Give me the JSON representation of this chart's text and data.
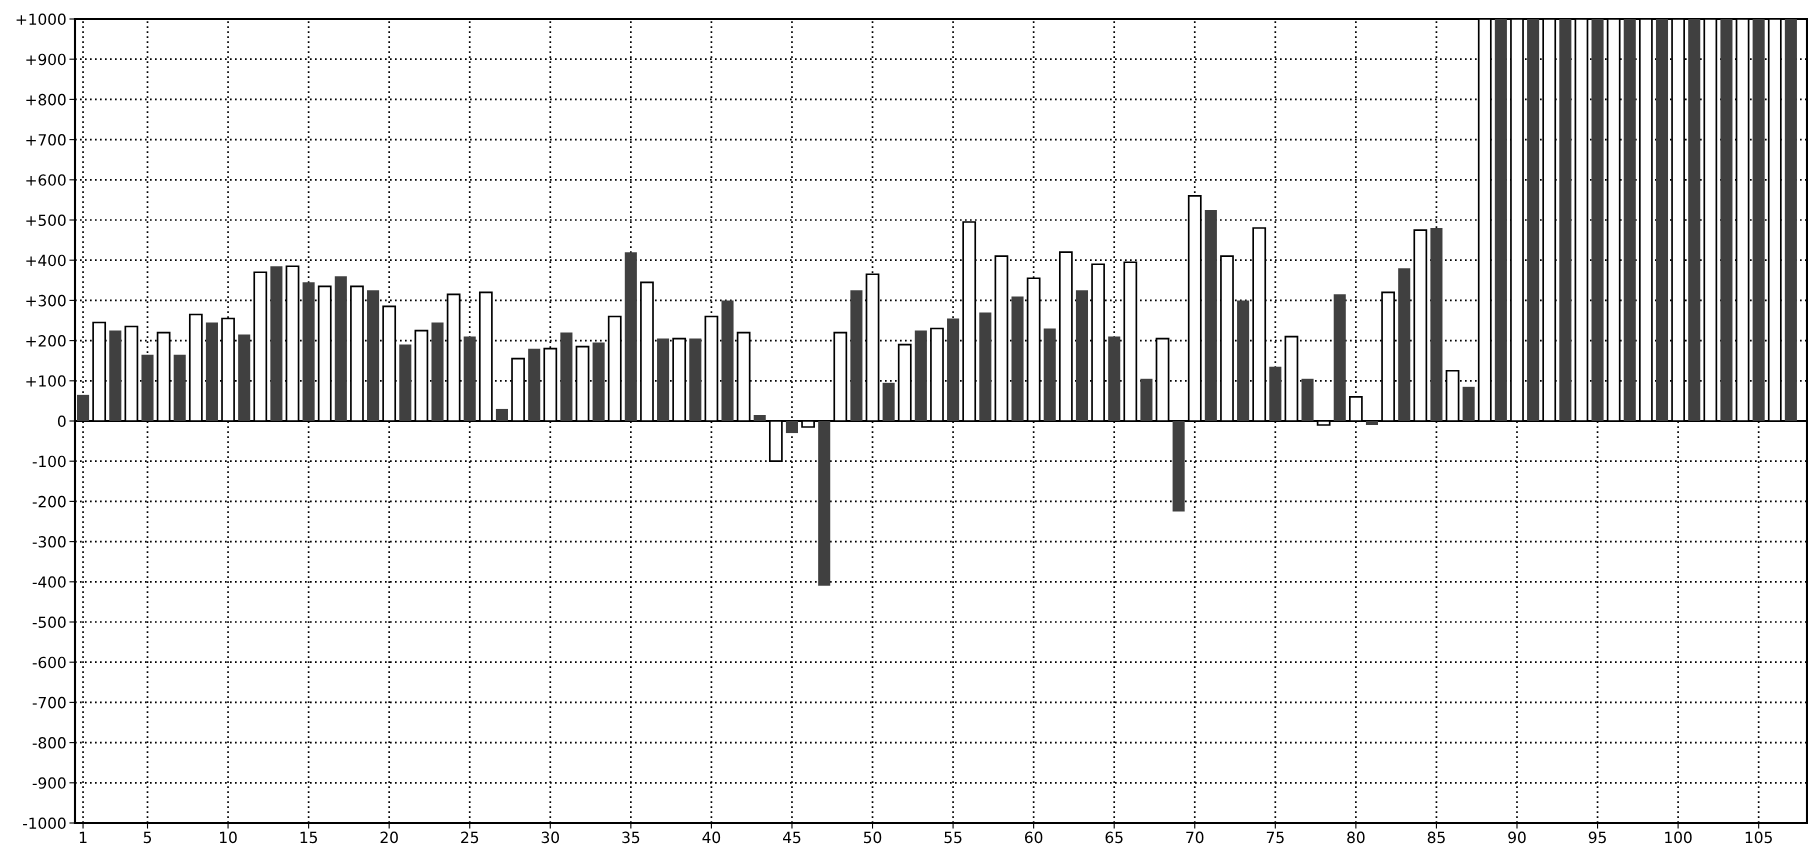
{
  "chart_data": {
    "type": "bar",
    "series": [
      {
        "color": "#404040",
        "x": [
          1,
          3,
          5,
          7,
          9,
          11,
          13,
          15,
          17,
          19,
          21,
          23,
          25,
          27,
          29,
          31,
          33,
          35,
          37,
          39,
          41,
          43,
          45,
          47,
          49,
          51,
          53,
          55,
          57,
          59,
          61,
          63,
          65,
          67,
          69,
          71,
          73,
          75,
          77,
          79,
          81,
          83,
          85,
          87,
          89,
          91,
          93,
          95,
          97,
          99,
          101,
          103,
          105,
          107
        ],
        "values": [
          65,
          225,
          165,
          165,
          245,
          215,
          385,
          345,
          360,
          325,
          190,
          245,
          210,
          30,
          180,
          220,
          195,
          420,
          205,
          205,
          300,
          15,
          -30,
          -410,
          325,
          95,
          225,
          255,
          270,
          310,
          230,
          325,
          210,
          105,
          -225,
          525,
          300,
          135,
          105,
          315,
          -10,
          380,
          480,
          85,
          1000,
          1000,
          1000,
          1000,
          1000,
          1000,
          1000,
          1000,
          1000,
          1000
        ]
      },
      {
        "color": "#ffffff",
        "x": [
          2,
          4,
          6,
          8,
          10,
          12,
          14,
          16,
          18,
          20,
          22,
          24,
          26,
          28,
          30,
          32,
          34,
          36,
          38,
          40,
          42,
          44,
          46,
          48,
          50,
          52,
          54,
          56,
          58,
          60,
          62,
          64,
          66,
          68,
          70,
          72,
          74,
          76,
          78,
          80,
          82,
          84,
          86,
          88,
          90,
          92,
          94,
          96,
          98,
          100,
          102,
          104,
          106
        ],
        "values": [
          245,
          235,
          220,
          265,
          255,
          370,
          385,
          335,
          335,
          285,
          225,
          315,
          320,
          155,
          180,
          185,
          260,
          345,
          205,
          260,
          220,
          -100,
          -15,
          220,
          365,
          190,
          230,
          495,
          410,
          355,
          420,
          390,
          395,
          205,
          560,
          410,
          480,
          210,
          -10,
          60,
          320,
          475,
          125,
          1000,
          1000,
          1000,
          1000,
          1000,
          1000,
          1000,
          1000,
          1000,
          1000
        ]
      }
    ],
    "xlim": [
      0.5,
      108
    ],
    "xticks": [
      1,
      5,
      10,
      15,
      20,
      25,
      30,
      35,
      40,
      45,
      50,
      55,
      60,
      65,
      70,
      75,
      80,
      85,
      90,
      95,
      100,
      105
    ],
    "ylim": [
      -1000,
      1000
    ],
    "yticks": [
      {
        "value": -1000,
        "label": "-1000"
      },
      {
        "value": -900,
        "label": "-900"
      },
      {
        "value": -800,
        "label": "-800"
      },
      {
        "value": -700,
        "label": "-700"
      },
      {
        "value": -600,
        "label": "-600"
      },
      {
        "value": -500,
        "label": "-500"
      },
      {
        "value": -400,
        "label": "-400"
      },
      {
        "value": -300,
        "label": "-300"
      },
      {
        "value": -200,
        "label": "-200"
      },
      {
        "value": -100,
        "label": "-100"
      },
      0,
      {
        "value": 100,
        "label": "+100"
      },
      {
        "value": 200,
        "label": "+200"
      },
      {
        "value": 300,
        "label": "+300"
      },
      {
        "value": 400,
        "label": "+400"
      },
      {
        "value": 500,
        "label": "+500"
      },
      {
        "value": 600,
        "label": "+600"
      },
      {
        "value": 700,
        "label": "+700"
      },
      {
        "value": 800,
        "label": "+800"
      },
      {
        "value": 900,
        "label": "+900"
      },
      {
        "value": 1000,
        "label": "+1000"
      }
    ],
    "grid": true
  }
}
